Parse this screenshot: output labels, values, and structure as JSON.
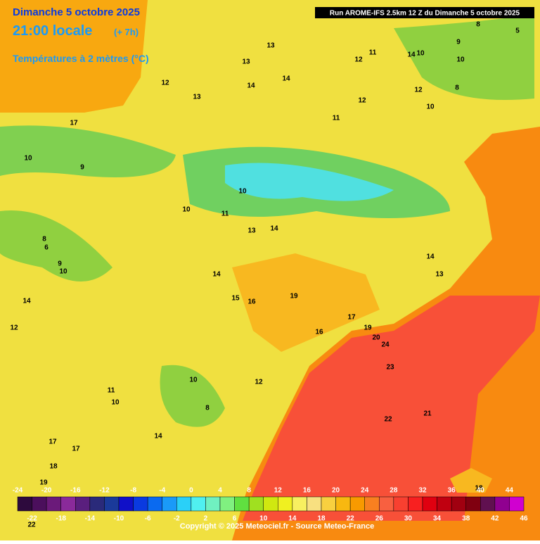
{
  "header": {
    "date": "Dimanche 5 octobre 2025",
    "time": "21:00 locale",
    "offset": "(+ 7h)",
    "variable": "Températures à 2 mètres (°C)",
    "run": "Run AROME-IFS 2.5km 12 Z du Dimanche 5 octobre 2025"
  },
  "map": {
    "labels": [
      17,
      10,
      9,
      13,
      13,
      12,
      13,
      14,
      14,
      12,
      11,
      14,
      10,
      10,
      8,
      12,
      10,
      12,
      11,
      9,
      8,
      5,
      10,
      10,
      11,
      13,
      14,
      8,
      6,
      9,
      10,
      14,
      12,
      14,
      15,
      16,
      19,
      16,
      17,
      19,
      20,
      24,
      23,
      12,
      10,
      11,
      10,
      8,
      22,
      21,
      14,
      17,
      17,
      18,
      19,
      18,
      13,
      14,
      22
    ]
  },
  "scale": {
    "ticks": [
      -24,
      -22,
      -20,
      -18,
      -16,
      -14,
      -12,
      -10,
      -8,
      -6,
      -4,
      -2,
      0,
      2,
      4,
      6,
      8,
      10,
      12,
      14,
      16,
      18,
      20,
      22,
      24,
      26,
      28,
      30,
      32,
      34,
      36,
      38,
      40,
      42,
      44,
      46
    ],
    "colors": [
      "#2d0a3d",
      "#4b0f5c",
      "#6b1a7a",
      "#8a2a9a",
      "#5a1f7e",
      "#2a2a7a",
      "#1a3a9a",
      "#1010c8",
      "#0a3ae0",
      "#0a6af0",
      "#1a9af8",
      "#2ad0f8",
      "#50f0f0",
      "#70f0c0",
      "#80f080",
      "#60e040",
      "#a0e020",
      "#d0e810",
      "#f0f020",
      "#f8f060",
      "#f8e080",
      "#f8d040",
      "#f8b810",
      "#f89a00",
      "#f88020",
      "#f86040",
      "#f84030",
      "#f82020",
      "#e00010",
      "#c00010",
      "#a00010",
      "#800010",
      "#601050",
      "#900090",
      "#d000d0",
      "#f070f0"
    ]
  },
  "footer": {
    "copyright": "Copyright © 2025 Meteociel.fr - Source Meteo-France"
  }
}
